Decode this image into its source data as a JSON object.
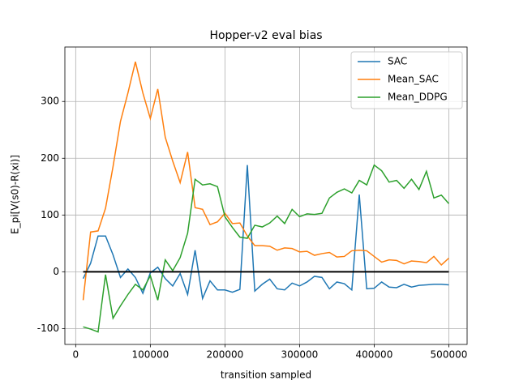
{
  "chart_data": {
    "type": "line",
    "title": "Hopper-v2 eval bias",
    "x_label": "transition sampled",
    "y_label": "E_pi[V(s0)-R(xi)]",
    "x": [
      10000,
      20000,
      30000,
      40000,
      50000,
      60000,
      70000,
      80000,
      90000,
      100000,
      110000,
      120000,
      130000,
      140000,
      150000,
      160000,
      170000,
      180000,
      190000,
      200000,
      210000,
      220000,
      230000,
      240000,
      250000,
      260000,
      270000,
      280000,
      290000,
      300000,
      310000,
      320000,
      330000,
      340000,
      350000,
      360000,
      370000,
      380000,
      390000,
      400000,
      410000,
      420000,
      430000,
      440000,
      450000,
      460000,
      470000,
      480000,
      490000,
      500000
    ],
    "series": [
      {
        "name": "SAC",
        "color": "#1f77b4",
        "values": [
          -12,
          15,
          63,
          63,
          30,
          -10,
          5,
          -10,
          -38,
          -2,
          8,
          -12,
          -25,
          -3,
          -40,
          38,
          -47,
          -16,
          -32,
          -32,
          -36,
          -31,
          188,
          -34,
          -22,
          -13,
          -30,
          -32,
          -20,
          -25,
          -18,
          -8,
          -10,
          -30,
          -18,
          -21,
          -32,
          136,
          -30,
          -29,
          -18,
          -27,
          -28,
          -22,
          -27,
          -24,
          -23,
          -22,
          -22,
          -23
        ]
      },
      {
        "name": "Mean_SAC",
        "color": "#ff7f0e",
        "values": [
          -50,
          70,
          72,
          112,
          185,
          265,
          315,
          370,
          315,
          270,
          322,
          237,
          195,
          157,
          211,
          113,
          110,
          83,
          88,
          103,
          85,
          86,
          63,
          46,
          46,
          45,
          38,
          42,
          41,
          35,
          36,
          29,
          32,
          34,
          26,
          27,
          37,
          38,
          37,
          27,
          17,
          21,
          20,
          14,
          19,
          18,
          16,
          27,
          12,
          24
        ]
      },
      {
        "name": "Mean_DDPG",
        "color": "#2ca02c",
        "values": [
          -97,
          -101,
          -106,
          -5,
          -82,
          -60,
          -40,
          -22,
          -32,
          -7,
          -50,
          21,
          2,
          25,
          68,
          163,
          153,
          155,
          150,
          97,
          78,
          61,
          59,
          82,
          79,
          86,
          98,
          85,
          110,
          97,
          102,
          101,
          103,
          130,
          140,
          146,
          139,
          161,
          153,
          188,
          178,
          158,
          161,
          147,
          163,
          145,
          177,
          130,
          135,
          120
        ]
      }
    ],
    "reference_line": {
      "y": 0,
      "x": [
        10000,
        500000
      ],
      "color": "#000000"
    },
    "xlim": [
      -14500,
      524500
    ],
    "ylim": [
      -128,
      396
    ],
    "xticks": [
      0,
      100000,
      200000,
      300000,
      400000,
      500000
    ],
    "yticks": [
      -100,
      0,
      100,
      200,
      300
    ],
    "grid": true,
    "legend": "upper-right"
  }
}
